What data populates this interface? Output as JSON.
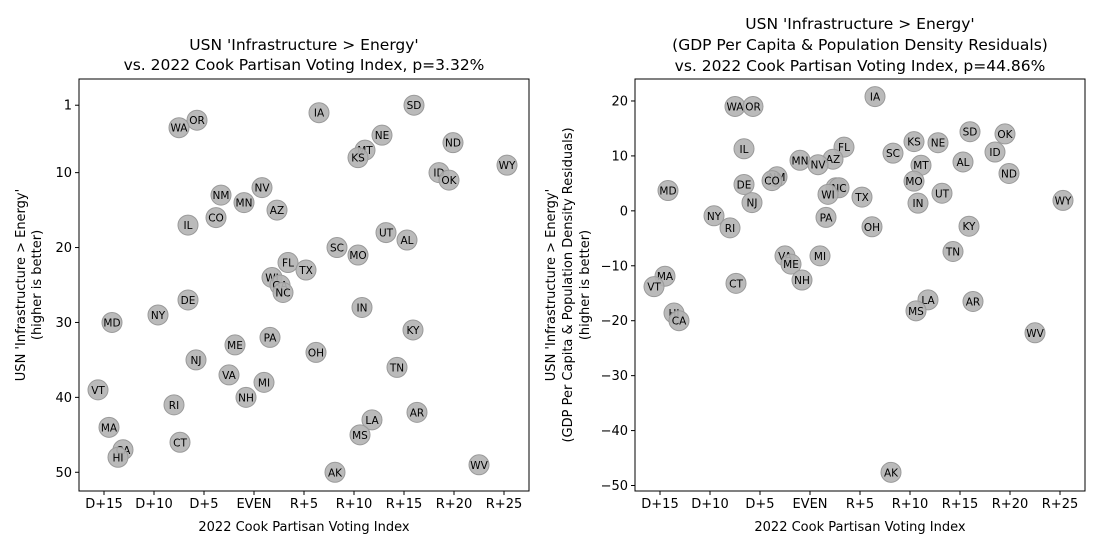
{
  "chart_data": [
    {
      "type": "scatter",
      "title": [
        "USN 'Infrastructure > Energy'",
        "vs. 2022 Cook Partisan Voting Index, p=3.32%"
      ],
      "xlabel": "2022 Cook Partisan Voting Index",
      "ylabel": [
        "USN 'Infrastructure > Energy'",
        "(higher is better)"
      ],
      "xlim": [
        -17.5,
        27.5
      ],
      "ylim": [
        52.5,
        -2.5
      ],
      "y_inverted": true,
      "xticks": [
        -15,
        -10,
        -5,
        0,
        5,
        10,
        15,
        20,
        25
      ],
      "xtick_labels": [
        "D+15",
        "D+10",
        "D+5",
        "EVEN",
        "R+5",
        "R+10",
        "R+15",
        "R+20",
        "R+25"
      ],
      "yticks": [
        1,
        10,
        20,
        30,
        40,
        50
      ],
      "ytick_labels": [
        "1",
        "10",
        "20",
        "30",
        "40",
        "50"
      ],
      "grid": false,
      "marker_color": "#b3b3b3",
      "points": [
        {
          "label": "SD",
          "x": 16.0,
          "y": 1
        },
        {
          "label": "IA",
          "x": 6.5,
          "y": 2
        },
        {
          "label": "OR",
          "x": -5.7,
          "y": 3
        },
        {
          "label": "WA",
          "x": -7.5,
          "y": 4
        },
        {
          "label": "NE",
          "x": 12.8,
          "y": 5
        },
        {
          "label": "ND",
          "x": 19.9,
          "y": 6
        },
        {
          "label": "MT",
          "x": 11.1,
          "y": 7
        },
        {
          "label": "KS",
          "x": 10.4,
          "y": 8
        },
        {
          "label": "WY",
          "x": 25.3,
          "y": 9
        },
        {
          "label": "ID",
          "x": 18.5,
          "y": 10
        },
        {
          "label": "OK",
          "x": 19.5,
          "y": 11
        },
        {
          "label": "NV",
          "x": 0.8,
          "y": 12
        },
        {
          "label": "NM",
          "x": -3.3,
          "y": 13
        },
        {
          "label": "MN",
          "x": -1.0,
          "y": 14
        },
        {
          "label": "AZ",
          "x": 2.3,
          "y": 15
        },
        {
          "label": "CO",
          "x": -3.8,
          "y": 16
        },
        {
          "label": "IL",
          "x": -6.6,
          "y": 17
        },
        {
          "label": "UT",
          "x": 13.2,
          "y": 18
        },
        {
          "label": "AL",
          "x": 15.3,
          "y": 19
        },
        {
          "label": "SC",
          "x": 8.3,
          "y": 20
        },
        {
          "label": "MO",
          "x": 10.4,
          "y": 21
        },
        {
          "label": "FL",
          "x": 3.4,
          "y": 22
        },
        {
          "label": "TX",
          "x": 5.2,
          "y": 23
        },
        {
          "label": "WI",
          "x": 1.8,
          "y": 24
        },
        {
          "label": "GA",
          "x": 2.6,
          "y": 25
        },
        {
          "label": "NC",
          "x": 2.9,
          "y": 26
        },
        {
          "label": "DE",
          "x": -6.6,
          "y": 27
        },
        {
          "label": "IN",
          "x": 10.8,
          "y": 28
        },
        {
          "label": "NY",
          "x": -9.6,
          "y": 29
        },
        {
          "label": "MD",
          "x": -14.2,
          "y": 30
        },
        {
          "label": "KY",
          "x": 15.9,
          "y": 31
        },
        {
          "label": "PA",
          "x": 1.6,
          "y": 32
        },
        {
          "label": "ME",
          "x": -1.9,
          "y": 33
        },
        {
          "label": "OH",
          "x": 6.2,
          "y": 34
        },
        {
          "label": "NJ",
          "x": -5.8,
          "y": 35
        },
        {
          "label": "TN",
          "x": 14.3,
          "y": 36
        },
        {
          "label": "VA",
          "x": -2.5,
          "y": 37
        },
        {
          "label": "MI",
          "x": 1.0,
          "y": 38
        },
        {
          "label": "VT",
          "x": -15.6,
          "y": 39
        },
        {
          "label": "NH",
          "x": -0.8,
          "y": 40
        },
        {
          "label": "RI",
          "x": -8.0,
          "y": 41
        },
        {
          "label": "AR",
          "x": 16.3,
          "y": 42
        },
        {
          "label": "LA",
          "x": 11.8,
          "y": 43
        },
        {
          "label": "MA",
          "x": -14.5,
          "y": 44
        },
        {
          "label": "MS",
          "x": 10.6,
          "y": 45
        },
        {
          "label": "CT",
          "x": -7.4,
          "y": 46
        },
        {
          "label": "CA",
          "x": -13.1,
          "y": 47
        },
        {
          "label": "HI",
          "x": -13.6,
          "y": 48
        },
        {
          "label": "WV",
          "x": 22.5,
          "y": 49
        },
        {
          "label": "AK",
          "x": 8.1,
          "y": 50
        }
      ]
    },
    {
      "type": "scatter",
      "title": [
        "USN 'Infrastructure > Energy'",
        "(GDP Per Capita & Population Density Residuals)",
        "vs. 2022 Cook Partisan Voting Index, p=44.86%"
      ],
      "xlabel": "2022 Cook Partisan Voting Index",
      "ylabel": [
        "USN 'Infrastructure > Energy'",
        "(GDP Per Capita & Population Density Residuals)",
        "(higher is better)"
      ],
      "xlim": [
        -17.5,
        27.5
      ],
      "ylim": [
        -51,
        24
      ],
      "xticks": [
        -15,
        -10,
        -5,
        0,
        5,
        10,
        15,
        20,
        25
      ],
      "xtick_labels": [
        "D+15",
        "D+10",
        "D+5",
        "EVEN",
        "R+5",
        "R+10",
        "R+15",
        "R+20",
        "R+25"
      ],
      "yticks": [
        20,
        10,
        0,
        -10,
        -20,
        -30,
        -40,
        -50
      ],
      "ytick_labels": [
        "20",
        "10",
        "0",
        "−10",
        "−20",
        "−30",
        "−40",
        "−50"
      ],
      "grid": false,
      "marker_color": "#b3b3b3",
      "points": [
        {
          "label": "IA",
          "x": 6.5,
          "y": 20.8
        },
        {
          "label": "WA",
          "x": -7.5,
          "y": 19.0
        },
        {
          "label": "OR",
          "x": -5.7,
          "y": 19.0
        },
        {
          "label": "SD",
          "x": 16.0,
          "y": 14.4
        },
        {
          "label": "OK",
          "x": 19.5,
          "y": 14.0
        },
        {
          "label": "KS",
          "x": 10.4,
          "y": 12.6
        },
        {
          "label": "NE",
          "x": 12.8,
          "y": 12.4
        },
        {
          "label": "FL",
          "x": 3.4,
          "y": 11.6
        },
        {
          "label": "IL",
          "x": -6.6,
          "y": 11.3
        },
        {
          "label": "ID",
          "x": 18.5,
          "y": 10.7
        },
        {
          "label": "SC",
          "x": 8.3,
          "y": 10.5
        },
        {
          "label": "AZ",
          "x": 2.3,
          "y": 9.4
        },
        {
          "label": "MN",
          "x": -1.0,
          "y": 9.2
        },
        {
          "label": "AL",
          "x": 15.3,
          "y": 8.9
        },
        {
          "label": "NV",
          "x": 0.8,
          "y": 8.4
        },
        {
          "label": "MT",
          "x": 11.1,
          "y": 8.3
        },
        {
          "label": "ND",
          "x": 19.9,
          "y": 6.8
        },
        {
          "label": "NM",
          "x": -3.3,
          "y": 6.2
        },
        {
          "label": "CO",
          "x": -3.8,
          "y": 5.5
        },
        {
          "label": "MO",
          "x": 10.4,
          "y": 5.4
        },
        {
          "label": "DE",
          "x": -6.6,
          "y": 4.8
        },
        {
          "label": "GA",
          "x": 2.6,
          "y": 4.2
        },
        {
          "label": "NC",
          "x": 2.9,
          "y": 4.2
        },
        {
          "label": "MD",
          "x": -14.2,
          "y": 3.7
        },
        {
          "label": "UT",
          "x": 13.2,
          "y": 3.2
        },
        {
          "label": "WI",
          "x": 1.8,
          "y": 3.0
        },
        {
          "label": "TX",
          "x": 5.2,
          "y": 2.5
        },
        {
          "label": "WY",
          "x": 25.3,
          "y": 1.9
        },
        {
          "label": "NJ",
          "x": -5.8,
          "y": 1.5
        },
        {
          "label": "IN",
          "x": 10.8,
          "y": 1.4
        },
        {
          "label": "NY",
          "x": -9.6,
          "y": -0.9
        },
        {
          "label": "PA",
          "x": 1.6,
          "y": -1.2
        },
        {
          "label": "KY",
          "x": 15.9,
          "y": -2.8
        },
        {
          "label": "OH",
          "x": 6.2,
          "y": -2.9
        },
        {
          "label": "RI",
          "x": -8.0,
          "y": -3.1
        },
        {
          "label": "TN",
          "x": 14.3,
          "y": -7.4
        },
        {
          "label": "VA",
          "x": -2.5,
          "y": -8.2
        },
        {
          "label": "MI",
          "x": 1.0,
          "y": -8.2
        },
        {
          "label": "ME",
          "x": -1.9,
          "y": -9.7
        },
        {
          "label": "MA",
          "x": -14.5,
          "y": -11.9
        },
        {
          "label": "NH",
          "x": -0.8,
          "y": -12.6
        },
        {
          "label": "CT",
          "x": -7.4,
          "y": -13.2
        },
        {
          "label": "VT",
          "x": -15.6,
          "y": -13.8
        },
        {
          "label": "LA",
          "x": 11.8,
          "y": -16.2
        },
        {
          "label": "AR",
          "x": 16.3,
          "y": -16.5
        },
        {
          "label": "MS",
          "x": 10.6,
          "y": -18.2
        },
        {
          "label": "HI",
          "x": -13.6,
          "y": -18.6
        },
        {
          "label": "CA",
          "x": -13.1,
          "y": -20.0
        },
        {
          "label": "WV",
          "x": 22.5,
          "y": -22.2
        },
        {
          "label": "AK",
          "x": 8.1,
          "y": -47.6
        }
      ]
    }
  ]
}
